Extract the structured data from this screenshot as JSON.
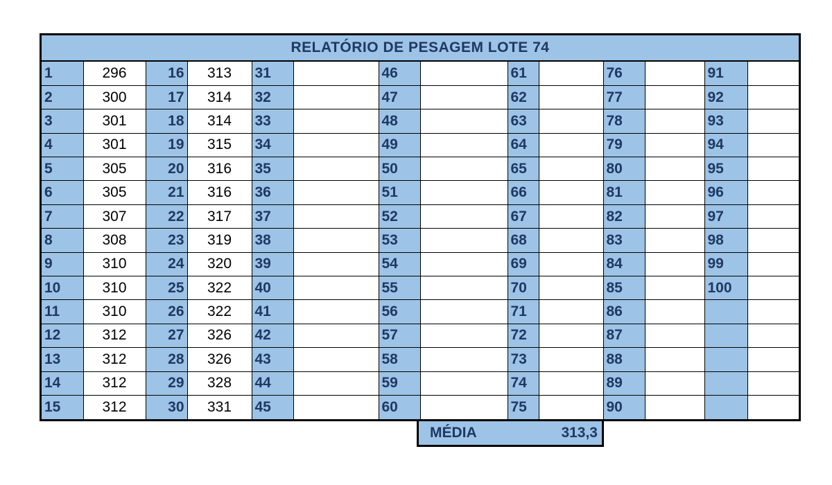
{
  "title": "RELATÓRIO DE PESAGEM LOTE 74",
  "rows": [
    [
      {
        "i": "1",
        "v": "296"
      },
      {
        "i": "16",
        "v": "313"
      },
      {
        "i": "31",
        "v": ""
      },
      {
        "i": "46",
        "v": ""
      },
      {
        "i": "61",
        "v": ""
      },
      {
        "i": "76",
        "v": ""
      },
      {
        "i": "91",
        "v": ""
      }
    ],
    [
      {
        "i": "2",
        "v": "300"
      },
      {
        "i": "17",
        "v": "314"
      },
      {
        "i": "32",
        "v": ""
      },
      {
        "i": "47",
        "v": ""
      },
      {
        "i": "62",
        "v": ""
      },
      {
        "i": "77",
        "v": ""
      },
      {
        "i": "92",
        "v": ""
      }
    ],
    [
      {
        "i": "3",
        "v": "301"
      },
      {
        "i": "18",
        "v": "314"
      },
      {
        "i": "33",
        "v": ""
      },
      {
        "i": "48",
        "v": ""
      },
      {
        "i": "63",
        "v": ""
      },
      {
        "i": "78",
        "v": ""
      },
      {
        "i": "93",
        "v": ""
      }
    ],
    [
      {
        "i": "4",
        "v": "301"
      },
      {
        "i": "19",
        "v": "315"
      },
      {
        "i": "34",
        "v": ""
      },
      {
        "i": "49",
        "v": ""
      },
      {
        "i": "64",
        "v": ""
      },
      {
        "i": "79",
        "v": ""
      },
      {
        "i": "94",
        "v": ""
      }
    ],
    [
      {
        "i": "5",
        "v": "305"
      },
      {
        "i": "20",
        "v": "316"
      },
      {
        "i": "35",
        "v": ""
      },
      {
        "i": "50",
        "v": ""
      },
      {
        "i": "65",
        "v": ""
      },
      {
        "i": "80",
        "v": ""
      },
      {
        "i": "95",
        "v": ""
      }
    ],
    [
      {
        "i": "6",
        "v": "305"
      },
      {
        "i": "21",
        "v": "316"
      },
      {
        "i": "36",
        "v": ""
      },
      {
        "i": "51",
        "v": ""
      },
      {
        "i": "66",
        "v": ""
      },
      {
        "i": "81",
        "v": ""
      },
      {
        "i": "96",
        "v": ""
      }
    ],
    [
      {
        "i": "7",
        "v": "307"
      },
      {
        "i": "22",
        "v": "317"
      },
      {
        "i": "37",
        "v": ""
      },
      {
        "i": "52",
        "v": ""
      },
      {
        "i": "67",
        "v": ""
      },
      {
        "i": "82",
        "v": ""
      },
      {
        "i": "97",
        "v": ""
      }
    ],
    [
      {
        "i": "8",
        "v": "308"
      },
      {
        "i": "23",
        "v": "319"
      },
      {
        "i": "38",
        "v": ""
      },
      {
        "i": "53",
        "v": ""
      },
      {
        "i": "68",
        "v": ""
      },
      {
        "i": "83",
        "v": ""
      },
      {
        "i": "98",
        "v": ""
      }
    ],
    [
      {
        "i": "9",
        "v": "310"
      },
      {
        "i": "24",
        "v": "320"
      },
      {
        "i": "39",
        "v": ""
      },
      {
        "i": "54",
        "v": ""
      },
      {
        "i": "69",
        "v": ""
      },
      {
        "i": "84",
        "v": ""
      },
      {
        "i": "99",
        "v": ""
      }
    ],
    [
      {
        "i": "10",
        "v": "310"
      },
      {
        "i": "25",
        "v": "322"
      },
      {
        "i": "40",
        "v": ""
      },
      {
        "i": "55",
        "v": ""
      },
      {
        "i": "70",
        "v": ""
      },
      {
        "i": "85",
        "v": ""
      },
      {
        "i": "100",
        "v": ""
      }
    ],
    [
      {
        "i": "11",
        "v": "310"
      },
      {
        "i": "26",
        "v": "322"
      },
      {
        "i": "41",
        "v": ""
      },
      {
        "i": "56",
        "v": ""
      },
      {
        "i": "71",
        "v": ""
      },
      {
        "i": "86",
        "v": ""
      },
      {
        "i": "",
        "v": ""
      }
    ],
    [
      {
        "i": "12",
        "v": "312"
      },
      {
        "i": "27",
        "v": "326"
      },
      {
        "i": "42",
        "v": ""
      },
      {
        "i": "57",
        "v": ""
      },
      {
        "i": "72",
        "v": ""
      },
      {
        "i": "87",
        "v": ""
      },
      {
        "i": "",
        "v": ""
      }
    ],
    [
      {
        "i": "13",
        "v": "312"
      },
      {
        "i": "28",
        "v": "326"
      },
      {
        "i": "43",
        "v": ""
      },
      {
        "i": "58",
        "v": ""
      },
      {
        "i": "73",
        "v": ""
      },
      {
        "i": "88",
        "v": ""
      },
      {
        "i": "",
        "v": ""
      }
    ],
    [
      {
        "i": "14",
        "v": "312"
      },
      {
        "i": "29",
        "v": "328"
      },
      {
        "i": "44",
        "v": ""
      },
      {
        "i": "59",
        "v": ""
      },
      {
        "i": "74",
        "v": ""
      },
      {
        "i": "89",
        "v": ""
      },
      {
        "i": "",
        "v": ""
      }
    ],
    [
      {
        "i": "15",
        "v": "312"
      },
      {
        "i": "30",
        "v": "331"
      },
      {
        "i": "45",
        "v": ""
      },
      {
        "i": "60",
        "v": ""
      },
      {
        "i": "75",
        "v": ""
      },
      {
        "i": "90",
        "v": ""
      },
      {
        "i": "",
        "v": ""
      }
    ]
  ],
  "summary": {
    "label": "MÉDIA",
    "value": "313,3"
  },
  "colors": {
    "header_fill": "#9dc3e6",
    "header_text": "#1f3864",
    "border": "#000000"
  }
}
